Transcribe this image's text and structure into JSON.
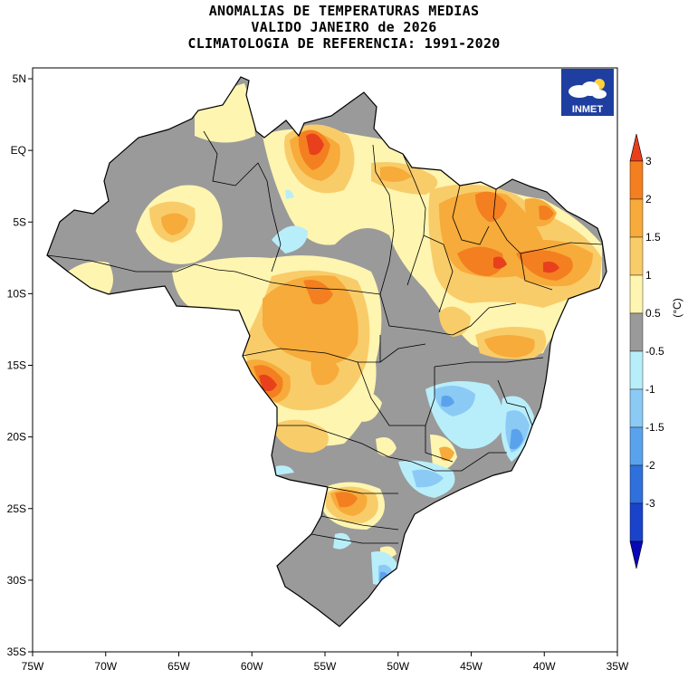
{
  "title_lines": [
    "ANOMALIAS DE TEMPERATURAS MEDIAS",
    "VALIDO JANEIRO de 2026",
    "CLIMATOLOGIA DE REFERENCIA: 1991-2020"
  ],
  "logo": {
    "text": "INMET",
    "icon": "cloud-sun-icon",
    "bg_color": "#1f3fa0"
  },
  "axes": {
    "lat_labels": [
      "5N",
      "EQ",
      "5S",
      "10S",
      "15S",
      "20S",
      "25S",
      "30S",
      "35S"
    ],
    "lon_labels": [
      "75W",
      "70W",
      "65W",
      "60W",
      "55W",
      "50W",
      "45W",
      "40W",
      "35W"
    ]
  },
  "colorbar": {
    "unit": "(°C)",
    "labels": [
      "3",
      "2",
      "1.5",
      "1",
      "0.5",
      "-0.5",
      "-1",
      "-1.5",
      "-2",
      "-3"
    ],
    "colors": [
      "#e8401c",
      "#f47f20",
      "#f7ab3a",
      "#f9cc6a",
      "#fef5b0",
      "#9a9a9a",
      "#b8eefa",
      "#8ccaf6",
      "#5aa3ec",
      "#2f70dc",
      "#1a43cc",
      "#0808b8"
    ]
  }
}
